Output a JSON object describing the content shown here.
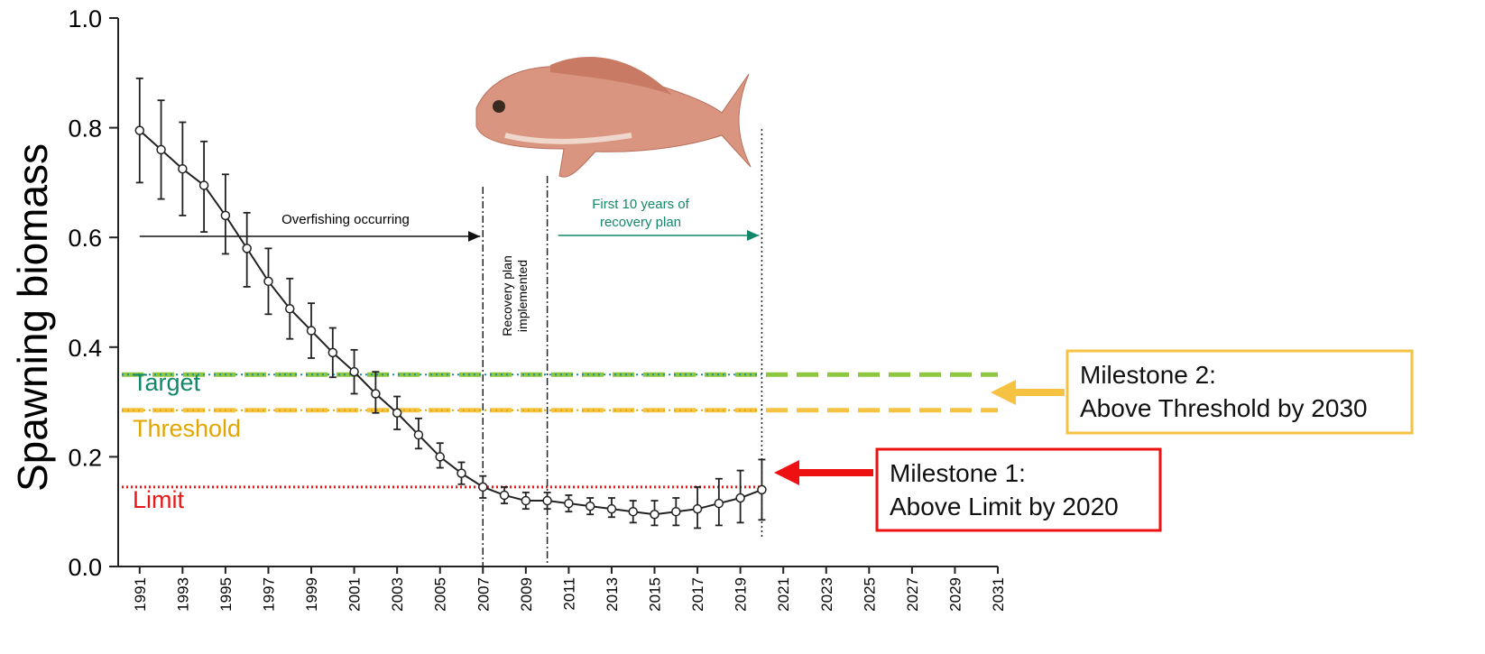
{
  "chart_data": {
    "type": "line",
    "y_label": "Spawning biomass",
    "xlim": [
      1990,
      2031
    ],
    "xticks": [
      1991,
      1993,
      1995,
      1997,
      1999,
      2001,
      2003,
      2005,
      2007,
      2009,
      2011,
      2013,
      2015,
      2017,
      2019,
      2021,
      2023,
      2025,
      2027,
      2029,
      2031
    ],
    "ylim": [
      0,
      1
    ],
    "yticks": [
      {
        "value": 0,
        "label": "0.0"
      },
      0.2,
      0.4,
      0.6,
      0.8,
      {
        "value": 1,
        "label": "1.0"
      }
    ],
    "x": [
      1991,
      1992,
      1993,
      1994,
      1995,
      1996,
      1997,
      1998,
      1999,
      2000,
      2001,
      2002,
      2003,
      2004,
      2005,
      2006,
      2007,
      2008,
      2009,
      2010,
      2011,
      2012,
      2013,
      2014,
      2015,
      2016,
      2017,
      2018,
      2019,
      2020
    ],
    "series": [
      {
        "color": "#222222",
        "values": [
          0.795,
          0.76,
          0.725,
          0.695,
          0.64,
          0.58,
          0.52,
          0.47,
          0.43,
          0.39,
          0.355,
          0.315,
          0.28,
          0.24,
          0.2,
          0.17,
          0.145,
          0.13,
          0.12,
          0.12,
          0.115,
          0.11,
          0.105,
          0.1,
          0.095,
          0.1,
          0.105,
          0.115,
          0.125,
          0.14
        ],
        "lower": [
          0.7,
          0.67,
          0.64,
          0.61,
          0.57,
          0.51,
          0.46,
          0.415,
          0.38,
          0.345,
          0.315,
          0.28,
          0.25,
          0.215,
          0.18,
          0.15,
          0.125,
          0.115,
          0.105,
          0.105,
          0.1,
          0.095,
          0.09,
          0.08,
          0.075,
          0.075,
          0.07,
          0.075,
          0.08,
          0.085
        ],
        "upper": [
          0.89,
          0.85,
          0.81,
          0.775,
          0.715,
          0.645,
          0.58,
          0.525,
          0.48,
          0.435,
          0.395,
          0.355,
          0.31,
          0.27,
          0.225,
          0.19,
          0.165,
          0.145,
          0.135,
          0.135,
          0.13,
          0.125,
          0.125,
          0.12,
          0.12,
          0.125,
          0.145,
          0.16,
          0.175,
          0.195
        ]
      }
    ],
    "reference_lines": [
      {
        "name": "Target",
        "value": 0.35,
        "color": "#8dc63f",
        "label_color": "#13876a"
      },
      {
        "name": "Threshold",
        "value": 0.285,
        "color": "#f5c242",
        "label_color": "#e2a600"
      },
      {
        "name": "Limit",
        "value": 0.145,
        "color": "#e81818",
        "label_color": "#e81818"
      }
    ],
    "vlines": [
      2007,
      2010,
      2020
    ],
    "annotations": {
      "overfishing": "Overfishing occurring",
      "recovery_first": [
        "First 10 years of",
        "recovery plan"
      ],
      "recovery_implemented": [
        "Recovery plan",
        "implemented"
      ]
    },
    "milestones": [
      {
        "lines": [
          "Milestone 1:",
          "Above Limit by 2020"
        ],
        "color": "#ee1111"
      },
      {
        "lines": [
          "Milestone 2:",
          "Above Threshold by 2030"
        ],
        "color": "#f5c242"
      }
    ]
  }
}
